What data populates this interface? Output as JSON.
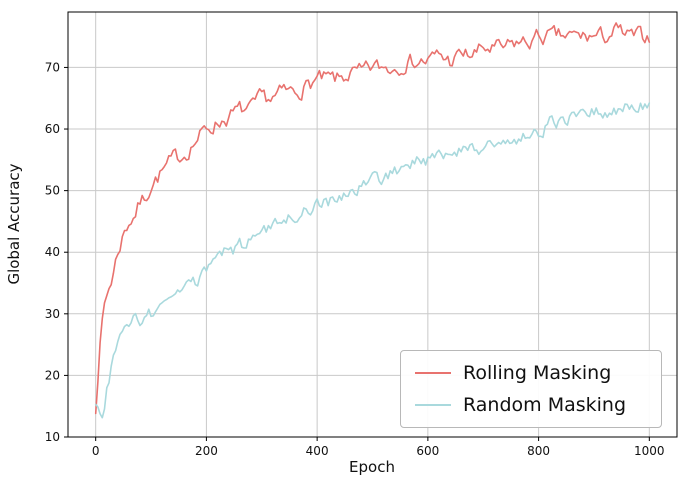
{
  "chart_data": {
    "type": "line",
    "title": "",
    "xlabel": "Epoch",
    "ylabel": "Global Accuracy",
    "xlim": [
      -50,
      1050
    ],
    "ylim": [
      10,
      79
    ],
    "xticks": [
      0,
      200,
      400,
      600,
      800,
      1000
    ],
    "yticks": [
      10,
      20,
      30,
      40,
      50,
      60,
      70
    ],
    "grid": true,
    "grid_color": "#c9c9c9",
    "legend_position": "lower right",
    "series": [
      {
        "name": "Rolling Masking",
        "color": "#e8726e",
        "noise_amplitude": 1.4,
        "keypoints": [
          [
            0,
            15
          ],
          [
            5,
            22
          ],
          [
            10,
            27
          ],
          [
            15,
            31
          ],
          [
            20,
            33
          ],
          [
            30,
            36
          ],
          [
            40,
            40
          ],
          [
            50,
            43
          ],
          [
            60,
            45
          ],
          [
            70,
            46
          ],
          [
            80,
            48
          ],
          [
            90,
            49
          ],
          [
            100,
            51
          ],
          [
            120,
            53
          ],
          [
            140,
            55
          ],
          [
            160,
            56
          ],
          [
            180,
            58
          ],
          [
            200,
            60
          ],
          [
            220,
            61
          ],
          [
            240,
            62
          ],
          [
            260,
            63
          ],
          [
            280,
            63
          ],
          [
            300,
            65
          ],
          [
            320,
            65
          ],
          [
            340,
            66
          ],
          [
            360,
            66
          ],
          [
            380,
            67
          ],
          [
            400,
            68
          ],
          [
            420,
            68
          ],
          [
            440,
            68
          ],
          [
            460,
            69
          ],
          [
            480,
            69
          ],
          [
            500,
            70
          ],
          [
            520,
            70
          ],
          [
            540,
            70
          ],
          [
            560,
            71
          ],
          [
            580,
            71
          ],
          [
            600,
            71
          ],
          [
            620,
            72
          ],
          [
            640,
            71
          ],
          [
            660,
            72
          ],
          [
            680,
            72
          ],
          [
            700,
            73
          ],
          [
            720,
            73
          ],
          [
            740,
            73
          ],
          [
            760,
            74
          ],
          [
            780,
            74
          ],
          [
            800,
            75
          ],
          [
            820,
            75
          ],
          [
            840,
            75
          ],
          [
            860,
            75
          ],
          [
            880,
            75
          ],
          [
            900,
            75
          ],
          [
            920,
            75
          ],
          [
            940,
            76
          ],
          [
            960,
            75
          ],
          [
            980,
            75
          ],
          [
            1000,
            75
          ]
        ]
      },
      {
        "name": "Random Masking",
        "color": "#a9d9dd",
        "noise_amplitude": 1.1,
        "keypoints": [
          [
            0,
            16
          ],
          [
            5,
            14
          ],
          [
            10,
            13
          ],
          [
            15,
            15
          ],
          [
            20,
            18
          ],
          [
            30,
            22
          ],
          [
            40,
            25
          ],
          [
            50,
            27
          ],
          [
            60,
            28
          ],
          [
            70,
            29
          ],
          [
            80,
            29
          ],
          [
            90,
            30
          ],
          [
            100,
            30
          ],
          [
            110,
            30
          ],
          [
            120,
            31
          ],
          [
            130,
            32
          ],
          [
            140,
            33
          ],
          [
            150,
            33
          ],
          [
            160,
            34
          ],
          [
            170,
            35
          ],
          [
            180,
            35
          ],
          [
            190,
            36
          ],
          [
            200,
            37
          ],
          [
            210,
            38
          ],
          [
            220,
            39
          ],
          [
            230,
            40
          ],
          [
            240,
            40
          ],
          [
            250,
            40
          ],
          [
            260,
            41
          ],
          [
            270,
            41
          ],
          [
            280,
            42
          ],
          [
            290,
            42
          ],
          [
            300,
            43
          ],
          [
            320,
            44
          ],
          [
            340,
            45
          ],
          [
            360,
            46
          ],
          [
            380,
            47
          ],
          [
            400,
            48
          ],
          [
            420,
            48
          ],
          [
            440,
            49
          ],
          [
            460,
            50
          ],
          [
            480,
            51
          ],
          [
            500,
            52
          ],
          [
            520,
            52
          ],
          [
            540,
            53
          ],
          [
            560,
            54
          ],
          [
            580,
            55
          ],
          [
            600,
            55
          ],
          [
            620,
            56
          ],
          [
            640,
            56
          ],
          [
            660,
            57
          ],
          [
            680,
            57
          ],
          [
            700,
            57
          ],
          [
            720,
            58
          ],
          [
            740,
            58
          ],
          [
            760,
            58
          ],
          [
            780,
            59
          ],
          [
            800,
            59
          ],
          [
            820,
            61
          ],
          [
            840,
            61
          ],
          [
            860,
            62
          ],
          [
            880,
            62
          ],
          [
            900,
            63
          ],
          [
            920,
            63
          ],
          [
            940,
            63
          ],
          [
            960,
            64
          ],
          [
            980,
            64
          ],
          [
            1000,
            64
          ]
        ]
      }
    ]
  }
}
